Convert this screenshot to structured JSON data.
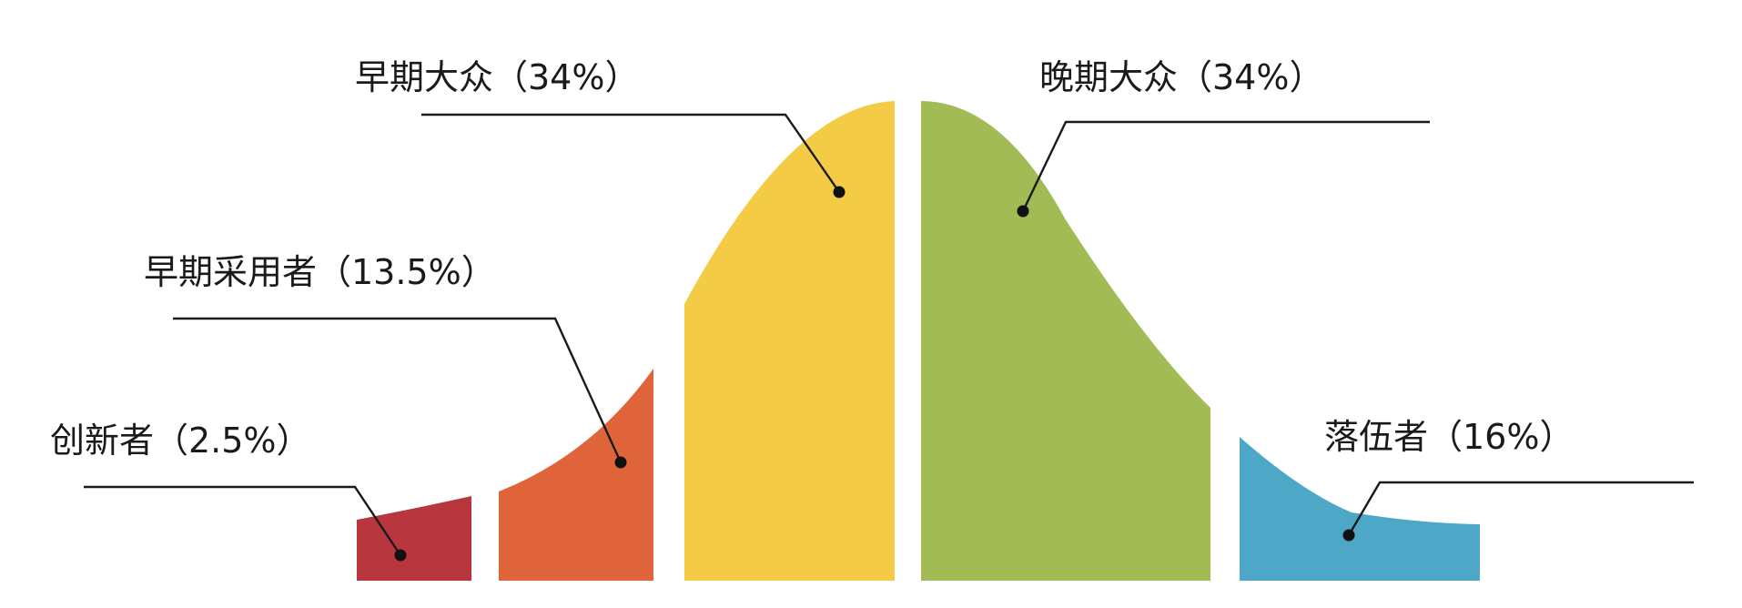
{
  "diagram": {
    "segments": [
      {
        "id": "innovators",
        "label": "创新者（2.5%）",
        "share_percent": 2.5,
        "color": "#b8363e"
      },
      {
        "id": "early-adopters",
        "label": "早期采用者（13.5%）",
        "share_percent": 13.5,
        "color": "#e0643a"
      },
      {
        "id": "early-majority",
        "label": "早期大众（34%）",
        "share_percent": 34,
        "color": "#f4cb45"
      },
      {
        "id": "late-majority",
        "label": "晚期大众（34%）",
        "share_percent": 34,
        "color": "#a2bb55"
      },
      {
        "id": "laggards",
        "label": "落伍者（16%）",
        "share_percent": 16,
        "color": "#4ca8c6"
      }
    ],
    "leader_color": "#1a1a1a",
    "background": "#ffffff"
  }
}
